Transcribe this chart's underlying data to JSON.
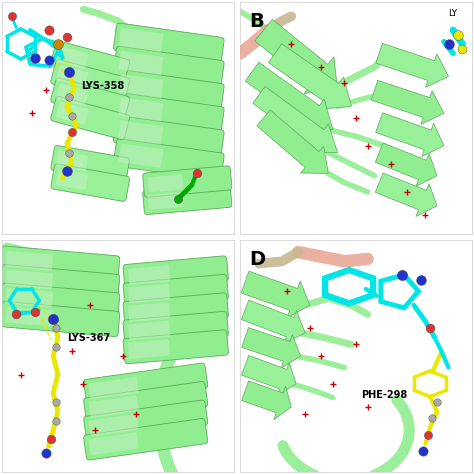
{
  "figure_size": [
    4.74,
    4.74
  ],
  "dpi": 100,
  "bg_color": "#ffffff",
  "helix_fill": "#90ee90",
  "helix_edge": "#5aaa5a",
  "helix_shadow": "#70cc70",
  "sheet_fill": "#90ee90",
  "sheet_edge": "#5aaa5a",
  "loop_color": "#90ee90",
  "cyan": "#00e5e5",
  "yellow": "#e8e800",
  "blue_atom": "#1a1aff",
  "red_atom": "#dd2222",
  "green_stick": "#00bb00",
  "pink_strand": "#e8a898",
  "tan_strand": "#c8b890",
  "label_A": "LYS-358",
  "label_C": "LYS-367",
  "label_D": "PHE-298",
  "panel_B_label": "B",
  "panel_D_label": "D",
  "wspace": 0.03,
  "hspace": 0.03
}
